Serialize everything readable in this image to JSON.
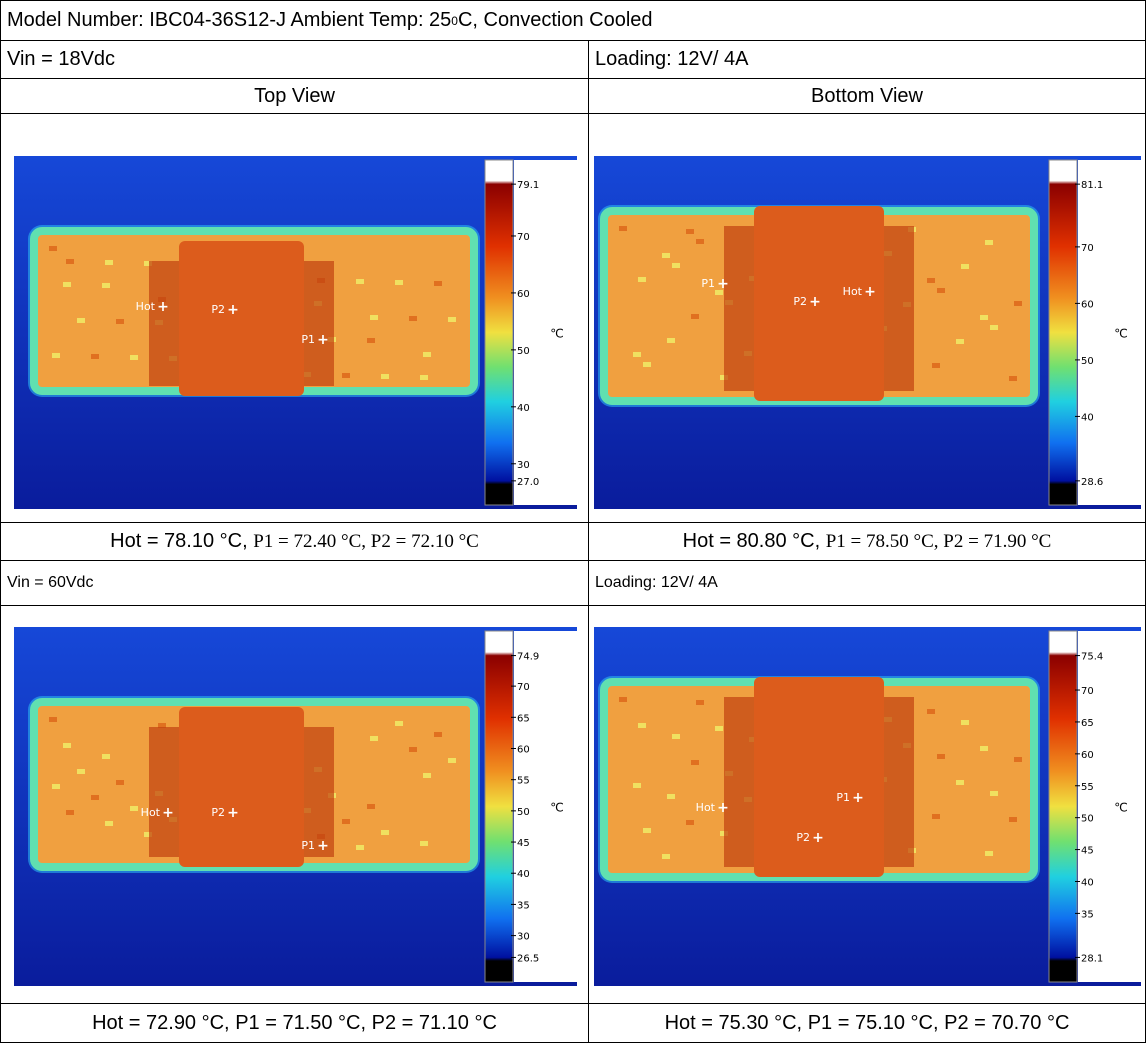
{
  "header": {
    "title_before": "Model Number: IBC04-36S12-J Ambient Temp: 25",
    "title_sup": "0",
    "title_after": "C, Convection Cooled"
  },
  "sections": [
    {
      "vin": "Vin = 18Vdc",
      "loading": "Loading: 12V/ 4A",
      "views": [
        {
          "heading": "Top View",
          "image": {
            "markers": [
              "Hot",
              "P2",
              "P1"
            ],
            "scale_max": "79.1",
            "scale_ticks": [
              "70",
              "60",
              "50",
              "40",
              "30"
            ],
            "scale_min": "27.0",
            "unit": "℃"
          },
          "caption_hot": "Hot = 78.10 °C,",
          "caption_rest": "P1 = 72.40 °C, P2 = 72.10 °C"
        },
        {
          "heading": "Bottom View",
          "image": {
            "markers": [
              "P1",
              "P2",
              "Hot"
            ],
            "scale_max": "81.1",
            "scale_ticks": [
              "70",
              "60",
              "50",
              "40"
            ],
            "scale_min": "28.6",
            "unit": "℃"
          },
          "caption_hot": "Hot = 80.80 °C,",
          "caption_rest": "P1 = 78.50 °C, P2 = 71.90 °C"
        }
      ]
    },
    {
      "vin": "Vin = 60Vdc",
      "loading": "Loading: 12V/ 4A",
      "views": [
        {
          "image": {
            "markers": [
              "Hot",
              "P2",
              "P1"
            ],
            "scale_max": "74.9",
            "scale_ticks": [
              "70",
              "65",
              "60",
              "55",
              "50",
              "45",
              "40",
              "35",
              "30"
            ],
            "scale_min": "26.5",
            "unit": "℃"
          },
          "caption_hot": "Hot = 72.90 °C,",
          "caption_rest": "P1 = 71.50 °C, P2 = 71.10 °C"
        },
        {
          "image": {
            "markers": [
              "Hot",
              "P1",
              "P2"
            ],
            "scale_max": "75.4",
            "scale_ticks": [
              "70",
              "65",
              "60",
              "55",
              "50",
              "45",
              "40",
              "35"
            ],
            "scale_min": "28.1",
            "unit": "℃"
          },
          "caption_hot": "Hot = 75.30 °C,",
          "caption_rest": "P1 = 75.10 °C, P2 = 70.70 °C"
        }
      ]
    }
  ]
}
